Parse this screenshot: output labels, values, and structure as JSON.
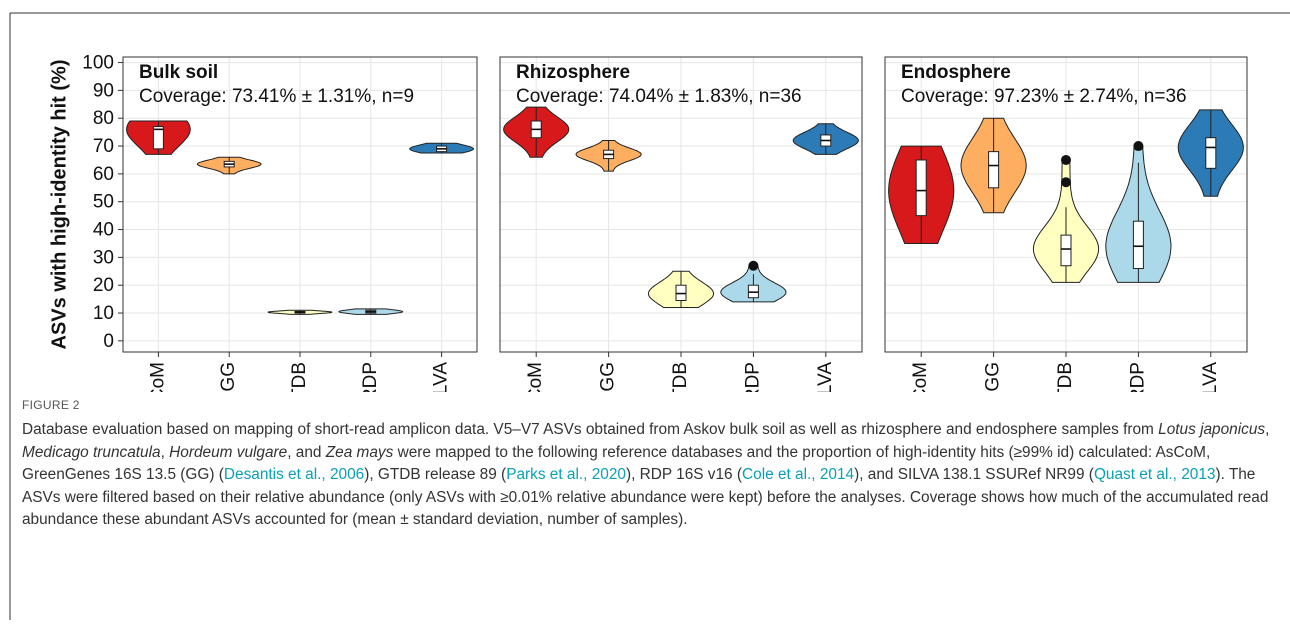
{
  "chart_data": [
    {
      "type": "violin",
      "title": "Bulk soil",
      "subtitle": "Coverage: 73.41% ± 1.31%, n=9",
      "ylabel": "ASVs with high-identity hit (%)",
      "categories": [
        "AsCoM",
        "GG",
        "GTDB",
        "RDP",
        "SILVA"
      ],
      "colors": [
        "#d7191c",
        "#fdae61",
        "#ffffbf",
        "#abd9e9",
        "#2c7bb6"
      ],
      "ylim": [
        -4,
        102
      ],
      "yticks": [
        0,
        10,
        20,
        30,
        40,
        50,
        60,
        70,
        80,
        90,
        100
      ],
      "grid": true,
      "violins": [
        {
          "min": 67,
          "max": 79,
          "whisker_low": 67,
          "q1": 69,
          "median": 76,
          "q3": 77,
          "whisker_high": 79,
          "outliers": []
        },
        {
          "min": 60,
          "max": 66,
          "whisker_low": 60,
          "q1": 62.5,
          "median": 63.5,
          "q3": 64.5,
          "whisker_high": 66,
          "outliers": []
        },
        {
          "min": 9.5,
          "max": 11,
          "whisker_low": 9.5,
          "q1": 10,
          "median": 10.3,
          "q3": 10.6,
          "whisker_high": 11,
          "outliers": []
        },
        {
          "min": 9.5,
          "max": 11.5,
          "whisker_low": 9.5,
          "q1": 10,
          "median": 10.5,
          "q3": 11,
          "whisker_high": 11.5,
          "outliers": []
        },
        {
          "min": 67.5,
          "max": 71,
          "whisker_low": 67.5,
          "q1": 68,
          "median": 69,
          "q3": 70,
          "whisker_high": 71,
          "outliers": []
        }
      ]
    },
    {
      "type": "violin",
      "title": "Rhizosphere",
      "subtitle": "Coverage: 74.04% ± 1.83%, n=36",
      "categories": [
        "AsCoM",
        "GG",
        "GTDB",
        "RDP",
        "SILVA"
      ],
      "colors": [
        "#d7191c",
        "#fdae61",
        "#ffffbf",
        "#abd9e9",
        "#2c7bb6"
      ],
      "ylim": [
        -4,
        102
      ],
      "yticks": [
        0,
        10,
        20,
        30,
        40,
        50,
        60,
        70,
        80,
        90,
        100
      ],
      "grid": true,
      "violins": [
        {
          "min": 66,
          "max": 84,
          "whisker_low": 66,
          "q1": 73,
          "median": 76,
          "q3": 79,
          "whisker_high": 84,
          "outliers": []
        },
        {
          "min": 61,
          "max": 72,
          "whisker_low": 61,
          "q1": 65.5,
          "median": 67,
          "q3": 68.5,
          "whisker_high": 72,
          "outliers": []
        },
        {
          "min": 12,
          "max": 25,
          "whisker_low": 12,
          "q1": 14.5,
          "median": 17,
          "q3": 20,
          "whisker_high": 25,
          "outliers": []
        },
        {
          "min": 14,
          "max": 27,
          "whisker_low": 14,
          "q1": 15.5,
          "median": 17.5,
          "q3": 20,
          "whisker_high": 24,
          "outliers": [
            27
          ]
        },
        {
          "min": 67,
          "max": 78,
          "whisker_low": 67,
          "q1": 70,
          "median": 72,
          "q3": 74,
          "whisker_high": 78,
          "outliers": []
        }
      ]
    },
    {
      "type": "violin",
      "title": "Endosphere",
      "subtitle": "Coverage: 97.23% ± 2.74%, n=36",
      "categories": [
        "AsCoM",
        "GG",
        "GTDB",
        "RDP",
        "SILVA"
      ],
      "colors": [
        "#d7191c",
        "#fdae61",
        "#ffffbf",
        "#abd9e9",
        "#2c7bb6"
      ],
      "ylim": [
        -4,
        102
      ],
      "yticks": [
        0,
        10,
        20,
        30,
        40,
        50,
        60,
        70,
        80,
        90,
        100
      ],
      "grid": true,
      "violins": [
        {
          "min": 35,
          "max": 70,
          "whisker_low": 35,
          "q1": 45,
          "median": 54,
          "q3": 65,
          "whisker_high": 70,
          "outliers": []
        },
        {
          "min": 46,
          "max": 80,
          "whisker_low": 46,
          "q1": 55,
          "median": 63,
          "q3": 68,
          "whisker_high": 80,
          "outliers": []
        },
        {
          "min": 21,
          "max": 65,
          "whisker_low": 21,
          "q1": 27,
          "median": 33,
          "q3": 38,
          "whisker_high": 48,
          "outliers": [
            57,
            65
          ]
        },
        {
          "min": 21,
          "max": 70,
          "whisker_low": 21,
          "q1": 26,
          "median": 34,
          "q3": 43,
          "whisker_high": 64,
          "outliers": [
            70
          ]
        },
        {
          "min": 52,
          "max": 83,
          "whisker_low": 52,
          "q1": 62,
          "median": 69.5,
          "q3": 73,
          "whisker_high": 83,
          "outliers": []
        }
      ]
    }
  ],
  "figure": {
    "label": "FIGURE 2",
    "caption": [
      {
        "text": "Database evaluation based on mapping of short-read amplicon data. V5–V7 ASVs obtained from Askov bulk soil as well as rhizosphere and endosphere samples from "
      },
      {
        "text": "Lotus japonicus",
        "style": "italic"
      },
      {
        "text": ", "
      },
      {
        "text": "Medicago truncatula",
        "style": "italic"
      },
      {
        "text": ", "
      },
      {
        "text": "Hordeum vulgare",
        "style": "italic"
      },
      {
        "text": ", and "
      },
      {
        "text": "Zea mays",
        "style": "italic"
      },
      {
        "text": " were mapped to the following reference databases and the proportion of high-identity hits (≥99% id) calculated: AsCoM, GreenGenes 16S 13.5 (GG) ("
      },
      {
        "text": "Desantis et al., 2006",
        "style": "link"
      },
      {
        "text": "), GTDB release 89 ("
      },
      {
        "text": "Parks et al., 2020",
        "style": "link"
      },
      {
        "text": "), RDP 16S v16 ("
      },
      {
        "text": "Cole et al., 2014",
        "style": "link"
      },
      {
        "text": "), and SILVA 138.1 SSURef NR99 ("
      },
      {
        "text": "Quast et al., 2013",
        "style": "link"
      },
      {
        "text": "). The ASVs were filtered based on their relative abundance (only ASVs with ≥0.01% relative abundance were kept) before the analyses. Coverage shows how much of the accumulated read abundance these abundant ASVs accounted for (mean ± standard deviation, number of samples)."
      }
    ]
  }
}
